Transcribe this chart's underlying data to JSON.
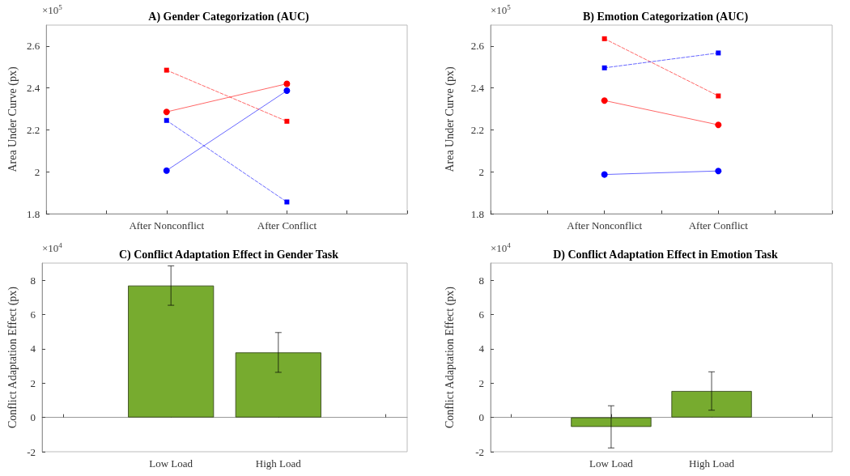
{
  "chart_data": [
    {
      "type": "line",
      "title": "A) Gender Categorization (AUC)",
      "ylabel": "Area Under Curve (px)",
      "annotations": [
        "×10$^{5}$"
      ],
      "categories": [
        "After Nonconflict",
        "After Conflict"
      ],
      "ylim": [
        1.8,
        2.7
      ],
      "yticks": [
        1.8,
        2,
        2.2,
        2.4,
        2.6
      ],
      "series": [
        {
          "color": "#ff0000",
          "marker": "circle",
          "line_style": "solid",
          "values": [
            2.286,
            2.42
          ]
        },
        {
          "color": "#0000ff",
          "marker": "circle",
          "line_style": "solid",
          "values": [
            2.006,
            2.387
          ]
        },
        {
          "color": "#ff0000",
          "marker": "square",
          "line_style": "dashed",
          "values": [
            2.485,
            2.241
          ]
        },
        {
          "color": "#0000ff",
          "marker": "square",
          "line_style": "dashed",
          "values": [
            2.245,
            1.856
          ]
        }
      ]
    },
    {
      "type": "line",
      "title": "B) Emotion Categorization (AUC)",
      "ylabel": "Area Under Curve (px)",
      "annotations": [
        "×10$^{5}$"
      ],
      "categories": [
        "After Nonconflict",
        "After Conflict"
      ],
      "ylim": [
        1.8,
        2.7
      ],
      "yticks": [
        1.8,
        2,
        2.2,
        2.4,
        2.6
      ],
      "series": [
        {
          "color": "#ff0000",
          "marker": "square",
          "line_style": "dashed",
          "values": [
            2.635,
            2.362
          ]
        },
        {
          "color": "#0000ff",
          "marker": "square",
          "line_style": "dashed",
          "values": [
            2.496,
            2.567
          ]
        },
        {
          "color": "#ff0000",
          "marker": "circle",
          "line_style": "solid",
          "values": [
            2.34,
            2.224
          ]
        },
        {
          "color": "#0000ff",
          "marker": "circle",
          "line_style": "solid",
          "values": [
            1.987,
            2.004
          ]
        }
      ]
    },
    {
      "type": "bar",
      "title": "C) Conflict Adaptation Effect in Gender Task",
      "ylabel": "Conflict Adaptation Effect (px)",
      "annotations": [
        "×10$^{4}$"
      ],
      "categories": [
        "Low Load",
        "High Load"
      ],
      "values": [
        7.69,
        3.79
      ],
      "errors": [
        1.15,
        1.16
      ],
      "color": "#77ab2f",
      "ylim": [
        -2,
        9
      ],
      "yticks": [
        -2,
        0,
        2,
        4,
        6,
        8
      ]
    },
    {
      "type": "bar",
      "title": "D) Conflict Adaptation Effect in Emotion Task",
      "ylabel": "Conflict Adaptation Effect (px)",
      "annotations": [
        "×10$^{4}$"
      ],
      "categories": [
        "Low Load",
        "High Load"
      ],
      "values": [
        -0.55,
        1.54
      ],
      "errors": [
        1.23,
        1.12
      ],
      "color": "#77ab2f",
      "ylim": [
        -2,
        9
      ],
      "yticks": [
        -2,
        0,
        2,
        4,
        6,
        8
      ]
    }
  ]
}
